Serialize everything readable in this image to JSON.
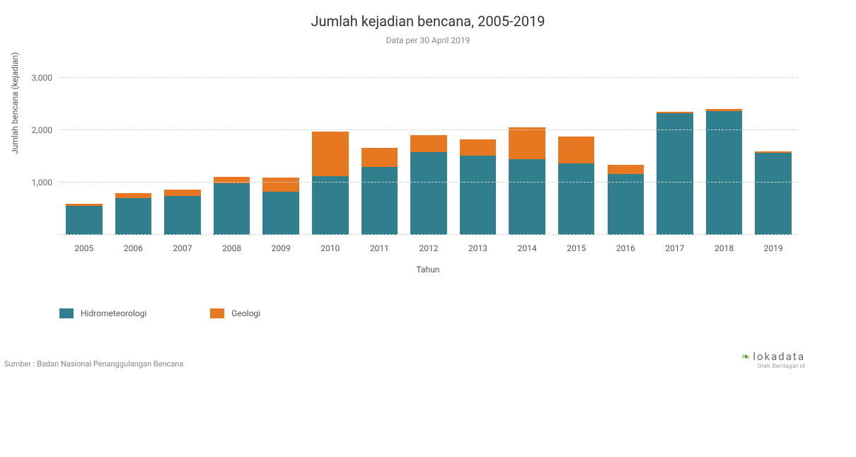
{
  "chart": {
    "type": "stacked-bar",
    "title": "Jumlah kejadian bencana, 2005-2019",
    "subtitle": "Data per 30 April 2019",
    "title_fontsize": 20,
    "subtitle_fontsize": 12,
    "background_color": "#ffffff",
    "grid_color": "#d0d0d0",
    "grid_style": "dashed",
    "x_axis": {
      "title": "Tahun",
      "categories": [
        "2005",
        "2006",
        "2007",
        "2008",
        "2009",
        "2010",
        "2011",
        "2012",
        "2013",
        "2014",
        "2015",
        "2016",
        "2017",
        "2018",
        "2019"
      ],
      "label_fontsize": 12
    },
    "y_axis": {
      "title": "Jumlah bencana (kejadian)",
      "min": 0,
      "max": 3000,
      "tick_step": 1000,
      "tick_labels": [
        "1,000",
        "2,000",
        "3,000"
      ],
      "label_fontsize": 12
    },
    "series": [
      {
        "name": "Hidrometeorologi",
        "color": "#2f7f8f",
        "values": [
          560,
          700,
          740,
          980,
          830,
          1120,
          1300,
          1580,
          1520,
          1440,
          1360,
          1160,
          2320,
          2370,
          1570
        ]
      },
      {
        "name": "Geologi",
        "color": "#e87722",
        "values": [
          40,
          100,
          130,
          130,
          270,
          850,
          360,
          320,
          300,
          620,
          520,
          180,
          30,
          40,
          20
        ]
      }
    ],
    "bar_width_ratio": 0.74
  },
  "legend": {
    "items": [
      {
        "label": "Hidrometeorologi",
        "color": "#2f7f8f"
      },
      {
        "label": "Geologi",
        "color": "#e87722"
      }
    ]
  },
  "footer": {
    "source": "Sumber : Badan Nasional Penanggulangan Bencana",
    "brand_name": "lokadata",
    "brand_tagline": "Oleh Beritagar.id",
    "brand_accent_color": "#6aa42f"
  }
}
